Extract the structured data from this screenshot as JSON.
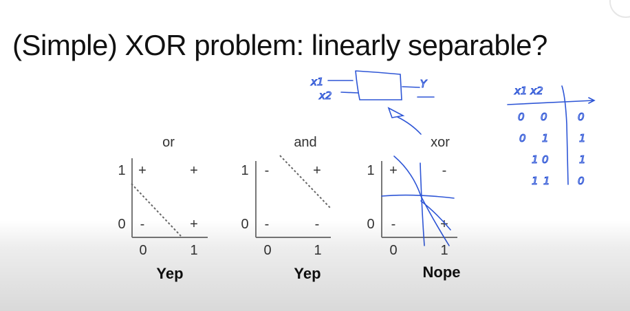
{
  "slide": {
    "title": "(Simple) XOR problem: linearly separable?",
    "plots": [
      {
        "name": "or",
        "verdict": "Yep",
        "y_labels": [
          "1",
          "0"
        ],
        "x_labels": [
          "0",
          "1"
        ],
        "marks": {
          "top_left": "+",
          "top_right": "+",
          "bottom_left": "-",
          "bottom_right": "+"
        }
      },
      {
        "name": "and",
        "verdict": "Yep",
        "y_labels": [
          "1",
          "0"
        ],
        "x_labels": [
          "0",
          "1"
        ],
        "marks": {
          "top_left": "-",
          "top_right": "+",
          "bottom_left": "-",
          "bottom_right": "-"
        }
      },
      {
        "name": "xor",
        "verdict": "Nope",
        "y_labels": [
          "1",
          "0"
        ],
        "x_labels": [
          "0",
          "1"
        ],
        "marks": {
          "top_left": "+",
          "top_right": "-",
          "bottom_left": "-",
          "bottom_right": "+"
        }
      }
    ]
  },
  "annotations": {
    "ink_color": "#2d55d6",
    "inputs": [
      "x1",
      "x2"
    ],
    "output": "Y",
    "truth_table": {
      "header": "x1 x2",
      "rows": [
        [
          "0",
          "0",
          "0"
        ],
        [
          "0",
          "1",
          "1"
        ],
        [
          "1",
          "0",
          "1"
        ],
        [
          "1",
          "1",
          "0"
        ]
      ]
    }
  }
}
